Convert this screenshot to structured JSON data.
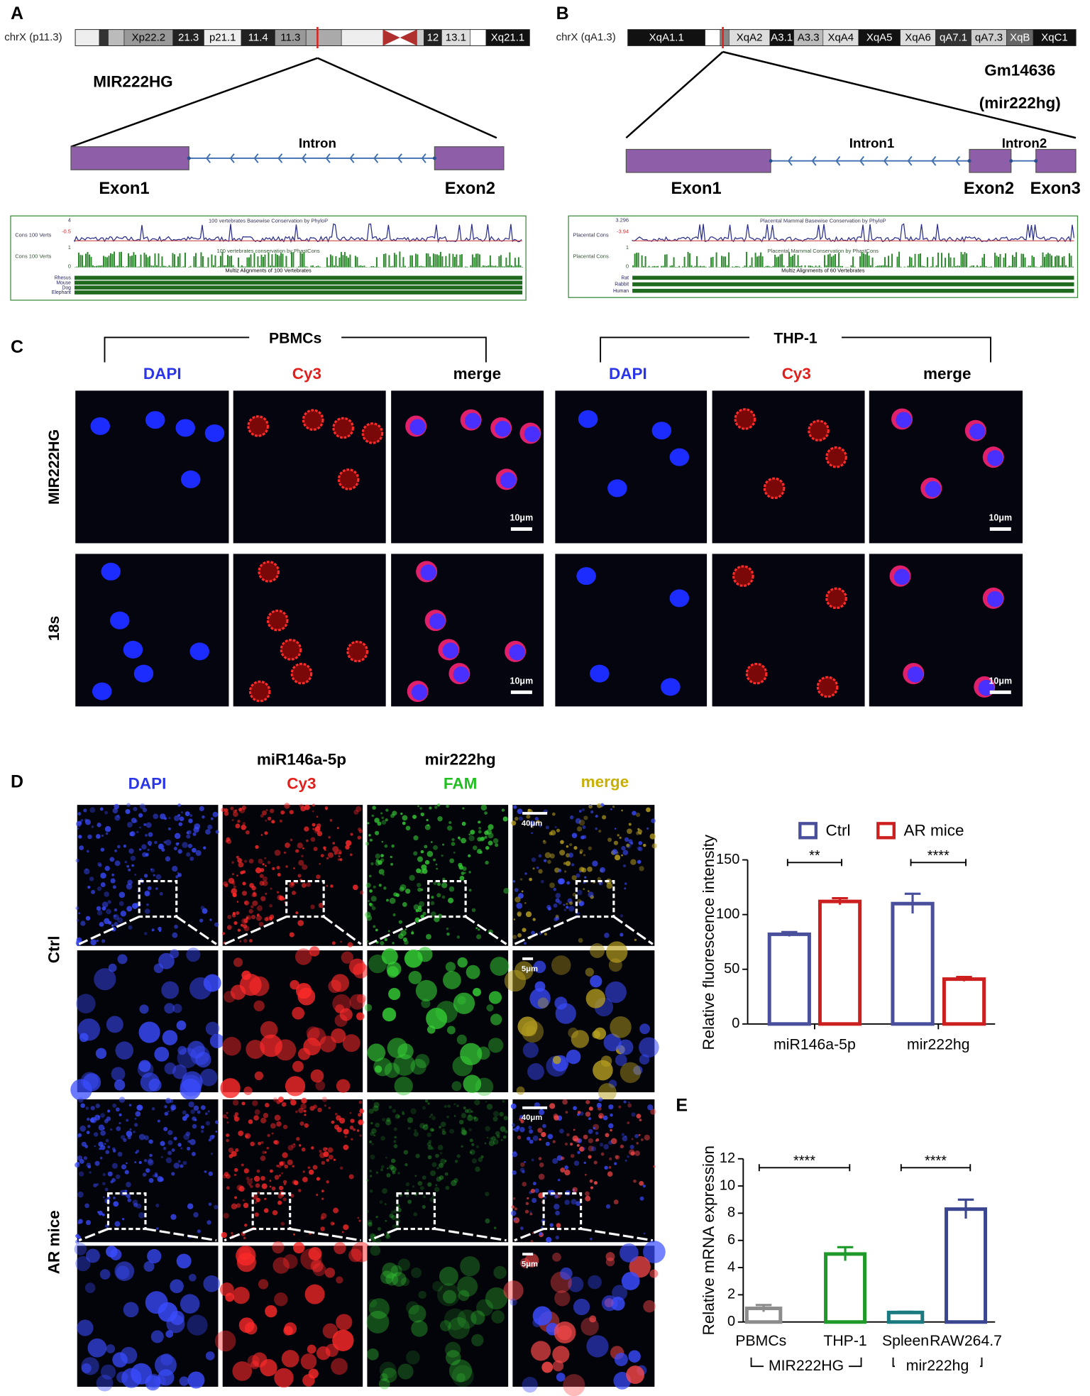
{
  "panel_a": {
    "label": "A",
    "chromosome": "chrX (p11.3)",
    "bands": [
      "Xp22.2",
      "21.3",
      "p21.1",
      "11.4",
      "11.3",
      "12",
      "13.1",
      "Xq21.1"
    ],
    "gene": "MIR222HG",
    "intron": "Intron",
    "exons": [
      "Exon1",
      "Exon2"
    ],
    "track": {
      "labels": [
        "Cons 100 Verts",
        "Cons 100 Verts"
      ],
      "scale": [
        "4",
        "-0.5",
        "1",
        "0"
      ],
      "titles": [
        "100 vertebrates Basewise Conservation by PhyloP",
        "100 vertebrates conservation by PhastCons",
        "Multiz Alignments of 100 Vertebrates"
      ],
      "species": [
        "Rhesus",
        "Mouse",
        "Dog",
        "Elephant"
      ]
    }
  },
  "panel_b": {
    "label": "B",
    "chromosome": "chrX (qA1.3)",
    "bands": [
      "XqA1.1",
      "XqA2",
      "A3.1",
      "A3.3",
      "XqA4",
      "XqA5",
      "XqA6",
      "qA7.1",
      "qA7.3",
      "XqB",
      "XqC1"
    ],
    "gene": "Gm14636",
    "gene_alias": "(mir222hg)",
    "introns": [
      "Intron1",
      "Intron2"
    ],
    "exons": [
      "Exon1",
      "Exon2",
      "Exon3"
    ],
    "track": {
      "labels": [
        "Placental Cons",
        "Placental Cons"
      ],
      "scale": [
        "3.296",
        "-3.94",
        "1",
        "0"
      ],
      "titles": [
        "Placental Mammal Basewise Conservation by PhyloP",
        "Placental Mammal Conservation by PhastCons",
        "Multiz Alignments of 60 Vertebrates"
      ],
      "species": [
        "Rat",
        "Rabbit",
        "Human"
      ]
    }
  },
  "panel_c": {
    "label": "C",
    "groups": [
      "PBMCs",
      "THP-1"
    ],
    "channels": [
      "DAPI",
      "Cy3",
      "merge"
    ],
    "rows": [
      "MIR222HG",
      "18s"
    ],
    "scale_bar": "10μm"
  },
  "panel_d": {
    "label": "D",
    "channels": [
      [
        "DAPI"
      ],
      [
        "miR146a-5p",
        "Cy3"
      ],
      [
        "mir222hg",
        "FAM"
      ],
      [
        "merge"
      ]
    ],
    "rows": [
      "Ctrl",
      "AR mice"
    ],
    "scale_bars": [
      "40μm",
      "5μm"
    ]
  },
  "panel_e": {
    "label": "E"
  },
  "chart_data": [
    {
      "type": "bar",
      "y_label": "Relative  fluorescence intensity",
      "categories": [
        "miR146a-5p",
        "mir222hg"
      ],
      "series": [
        {
          "name": "Ctrl",
          "color": "#4a4f9c",
          "values": [
            82,
            110
          ],
          "errors": [
            2,
            9
          ]
        },
        {
          "name": "AR mice",
          "color": "#cc1f1f",
          "values": [
            112,
            41
          ],
          "errors": [
            3,
            2
          ]
        }
      ],
      "significance": [
        "**",
        "****"
      ],
      "ylim": [
        0,
        150
      ],
      "yticks": [
        0,
        50,
        100,
        150
      ]
    },
    {
      "type": "bar",
      "y_label": "Relative mRNA expression",
      "categories": [
        "PBMCs",
        "THP-1",
        "Spleen",
        "RAW264.7"
      ],
      "values": [
        1,
        5,
        0.7,
        8.3
      ],
      "errors": [
        0.25,
        0.5,
        0.05,
        0.7
      ],
      "colors": [
        "#8c8c8c",
        "#1f9a2a",
        "#1a7a80",
        "#3b4690"
      ],
      "groups": [
        "MIR222HG",
        "mir222hg"
      ],
      "significance": [
        "****",
        "****"
      ],
      "ylim": [
        0,
        12
      ],
      "yticks": [
        0,
        2,
        4,
        6,
        8,
        10,
        12
      ]
    }
  ]
}
